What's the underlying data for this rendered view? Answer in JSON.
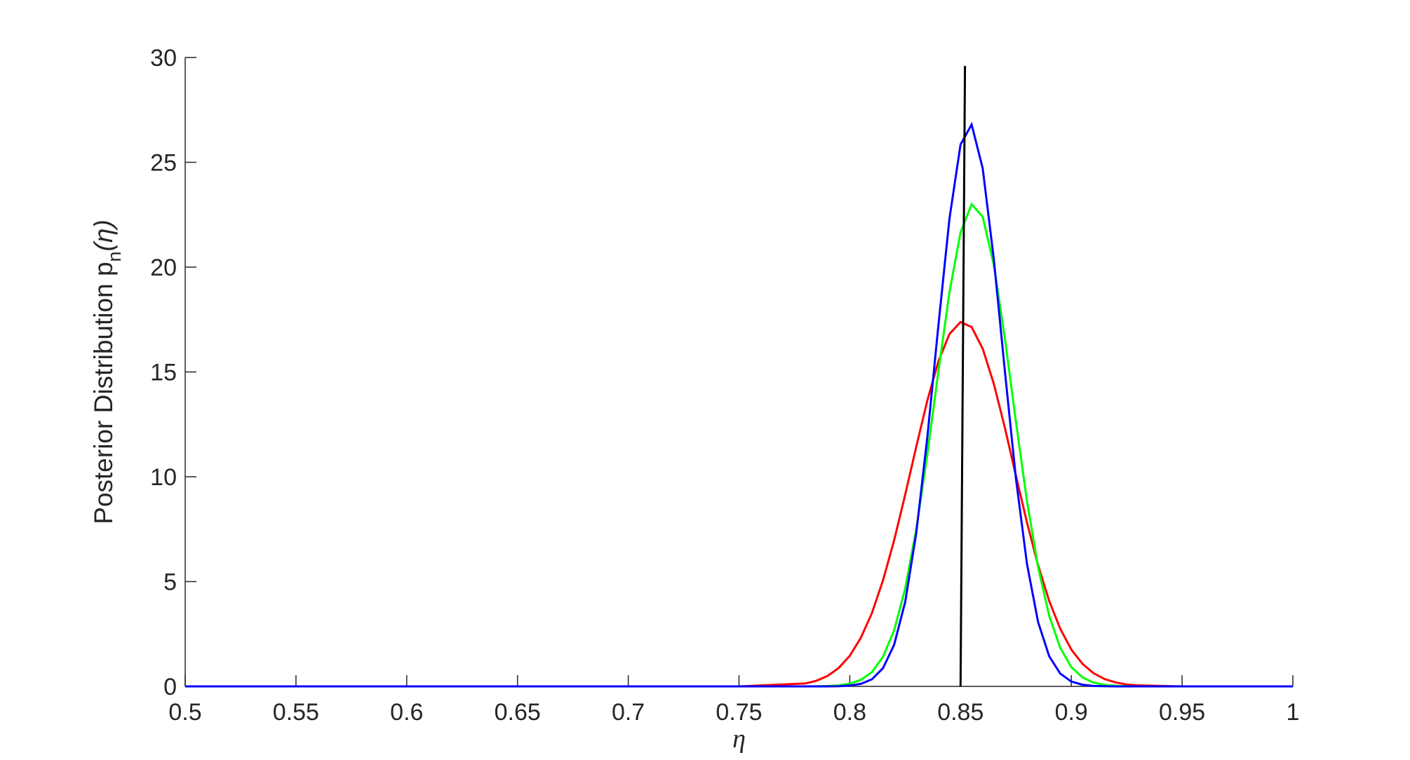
{
  "chart_data": {
    "type": "line",
    "xlabel": "η",
    "ylabel": [
      "Posterior Distribution p",
      "n",
      "(η)"
    ],
    "x": [
      0.5,
      0.75,
      0.78,
      0.785,
      0.79,
      0.795,
      0.8,
      0.805,
      0.81,
      0.815,
      0.82,
      0.825,
      0.83,
      0.835,
      0.84,
      0.845,
      0.85,
      0.855,
      0.86,
      0.865,
      0.87,
      0.875,
      0.88,
      0.885,
      0.89,
      0.895,
      0.9,
      0.905,
      0.91,
      0.915,
      0.92,
      0.925,
      0.93,
      0.95,
      1
    ],
    "series": [
      {
        "color": "#ff0000",
        "values": [
          0,
          0,
          0.14,
          0.27,
          0.5,
          0.88,
          1.46,
          2.32,
          3.5,
          5.06,
          6.96,
          9.14,
          11.43,
          13.63,
          15.51,
          16.81,
          17.38,
          17.14,
          16.11,
          14.44,
          12.34,
          10.05,
          7.81,
          5.78,
          4.08,
          2.75,
          1.76,
          1.08,
          0.63,
          0.35,
          0.19,
          0.09,
          0.05,
          0,
          0
        ]
      },
      {
        "color": "#00ff00",
        "values": [
          0,
          0,
          0,
          0.005,
          0.02,
          0.05,
          0.13,
          0.31,
          0.68,
          1.41,
          2.67,
          4.66,
          7.48,
          11.06,
          15.03,
          18.81,
          21.66,
          23,
          22.4,
          20.11,
          16.61,
          12.63,
          8.83,
          5.69,
          3.37,
          1.84,
          0.92,
          0.43,
          0.18,
          0.07,
          0.03,
          0.01,
          0,
          0,
          0
        ]
      },
      {
        "color": "#0000ff",
        "values": [
          0,
          0,
          0,
          0,
          0,
          0.01,
          0.04,
          0.12,
          0.34,
          0.87,
          1.98,
          4.02,
          7.31,
          11.88,
          17.22,
          22.32,
          25.85,
          26.8,
          24.71,
          20.4,
          15.05,
          9.91,
          5.83,
          3.07,
          1.44,
          0.61,
          0.23,
          0.08,
          0.02,
          0.01,
          0,
          0,
          0,
          0,
          0
        ]
      },
      {
        "color": "#000000",
        "x": [
          0.85,
          0.852
        ],
        "values": [
          0,
          29.6
        ]
      }
    ],
    "xlim": [
      0.5,
      1
    ],
    "xticks": [
      0.5,
      0.55,
      0.6,
      0.65,
      0.7,
      0.75,
      0.8,
      0.85,
      0.9,
      0.95,
      1
    ],
    "ylim": [
      0,
      30
    ],
    "yticks": [
      0,
      5,
      10,
      15,
      20,
      25,
      30
    ]
  }
}
